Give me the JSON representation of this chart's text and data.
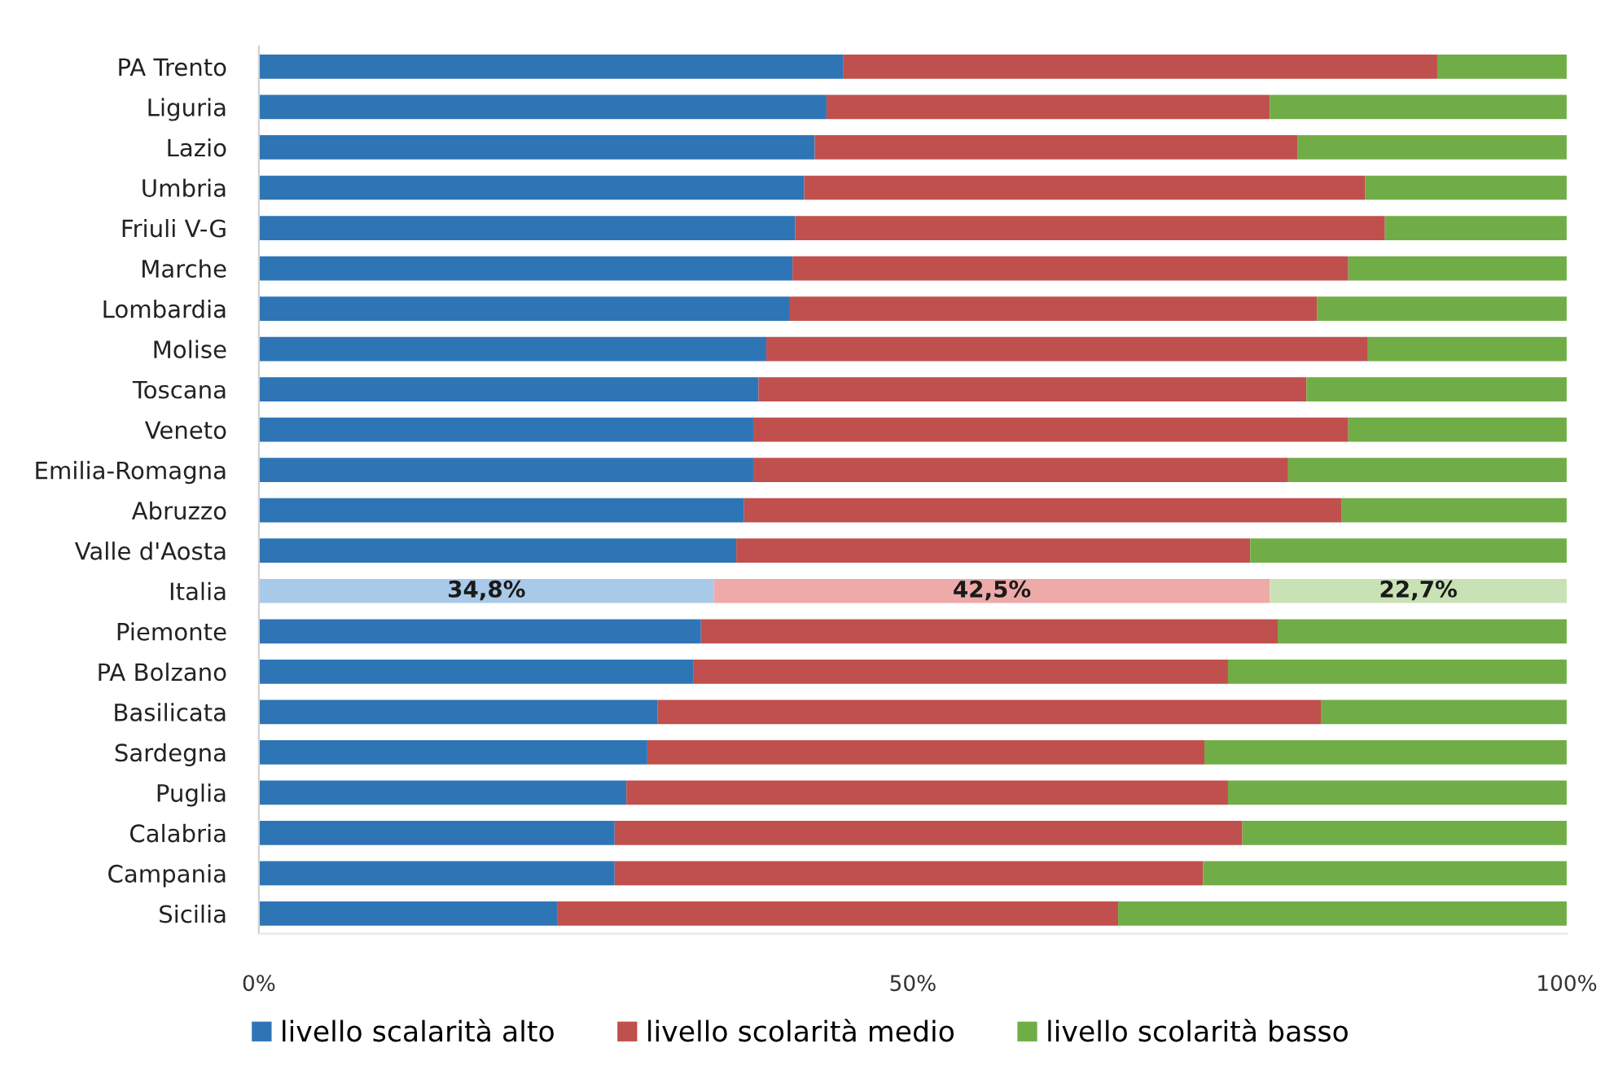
{
  "chart_data": {
    "type": "bar",
    "orientation": "horizontal",
    "stacked": true,
    "categories": [
      "PA Trento",
      "Liguria",
      "Lazio",
      "Umbria",
      "Friuli V-G",
      "Marche",
      "Lombardia",
      "Molise",
      "Toscana",
      "Veneto",
      "Emilia-Romagna",
      "Abruzzo",
      "Valle d'Aosta",
      "Italia",
      "Piemonte",
      "PA Bolzano",
      "Basilicata",
      "Sardegna",
      "Puglia",
      "Calabria",
      "Campania",
      "Sicilia"
    ],
    "series": [
      {
        "name": "livello scalarità alto",
        "color": "#2e75b6",
        "colors": [
          "#2e75b6",
          "#2e75b6",
          "#2e75b6",
          "#2e75b6",
          "#2e75b6",
          "#2e75b6",
          "#2e75b6",
          "#2e75b6",
          "#2e75b6",
          "#2e75b6",
          "#2e75b6",
          "#2e75b6",
          "#2e75b6",
          "#a9c9e8",
          "#2e75b6",
          "#2e75b6",
          "#2e75b6",
          "#2e75b6",
          "#2e75b6",
          "#2e75b6",
          "#2e75b6",
          "#2e75b6"
        ],
        "values": [
          44.7,
          43.4,
          42.5,
          41.7,
          41.0,
          40.8,
          40.6,
          38.8,
          38.2,
          37.8,
          37.8,
          37.1,
          36.5,
          34.8,
          33.8,
          33.2,
          30.5,
          29.7,
          28.1,
          27.2,
          27.2,
          22.8
        ],
        "value_labels": [
          null,
          null,
          null,
          null,
          null,
          null,
          null,
          null,
          null,
          null,
          null,
          null,
          null,
          "34,8%",
          null,
          null,
          null,
          null,
          null,
          null,
          null,
          null
        ]
      },
      {
        "name": "livello scolarità medio",
        "color": "#c0504d",
        "colors": [
          "#c0504d",
          "#c0504d",
          "#c0504d",
          "#c0504d",
          "#c0504d",
          "#c0504d",
          "#c0504d",
          "#c0504d",
          "#c0504d",
          "#c0504d",
          "#c0504d",
          "#c0504d",
          "#c0504d",
          "#eeaaa8",
          "#c0504d",
          "#c0504d",
          "#c0504d",
          "#c0504d",
          "#c0504d",
          "#c0504d",
          "#c0504d",
          "#c0504d"
        ],
        "values": [
          45.4,
          33.9,
          36.9,
          42.9,
          45.1,
          42.5,
          40.3,
          46.0,
          41.9,
          45.5,
          40.9,
          45.7,
          39.3,
          42.5,
          44.1,
          40.9,
          50.7,
          42.6,
          46.0,
          48.0,
          45.0,
          42.9
        ],
        "value_labels": [
          null,
          null,
          null,
          null,
          null,
          null,
          null,
          null,
          null,
          null,
          null,
          null,
          null,
          "42,5%",
          null,
          null,
          null,
          null,
          null,
          null,
          null,
          null
        ]
      },
      {
        "name": "livello scolarità basso",
        "color": "#70ad47",
        "colors": [
          "#70ad47",
          "#70ad47",
          "#70ad47",
          "#70ad47",
          "#70ad47",
          "#70ad47",
          "#70ad47",
          "#70ad47",
          "#70ad47",
          "#70ad47",
          "#70ad47",
          "#70ad47",
          "#70ad47",
          "#c8e2b6",
          "#70ad47",
          "#70ad47",
          "#70ad47",
          "#70ad47",
          "#70ad47",
          "#70ad47",
          "#70ad47",
          "#70ad47"
        ],
        "values": [
          9.9,
          22.7,
          20.6,
          15.4,
          13.9,
          16.7,
          19.1,
          15.2,
          19.9,
          16.7,
          21.3,
          17.2,
          24.2,
          22.7,
          22.1,
          25.9,
          18.8,
          27.7,
          25.9,
          24.8,
          27.8,
          34.3
        ],
        "value_labels": [
          null,
          null,
          null,
          null,
          null,
          null,
          null,
          null,
          null,
          null,
          null,
          null,
          null,
          "22,7%",
          null,
          null,
          null,
          null,
          null,
          null,
          null,
          null
        ]
      }
    ],
    "xlim": [
      0,
      100
    ],
    "xticks": [
      {
        "value": 0,
        "label": "0%"
      },
      {
        "value": 50,
        "label": "50%"
      },
      {
        "value": 100,
        "label": "100%"
      }
    ],
    "legend": "bottom"
  }
}
